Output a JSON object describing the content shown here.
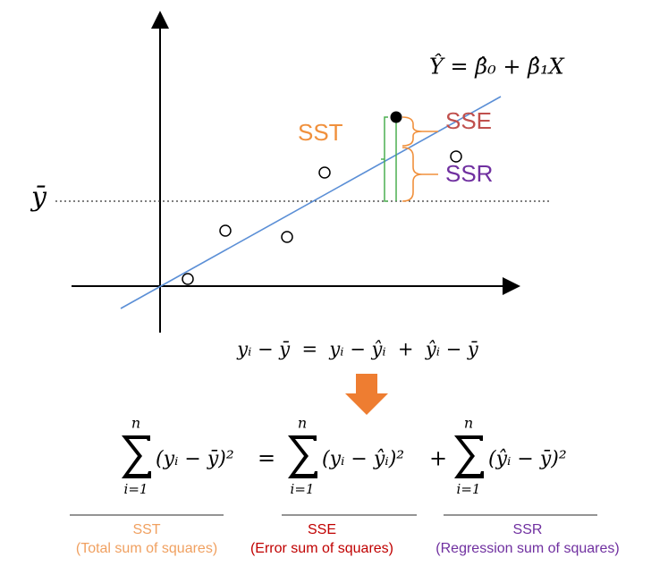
{
  "diagram": {
    "line_label": "Ŷ = β̂₀ + β̂₁X",
    "ybar_label": "ȳ",
    "sst_label": "SST",
    "sse_label": "SSE",
    "ssr_label": "SSR",
    "decomposition": "yᵢ − ȳ  =  yᵢ − ŷᵢ  +  ŷᵢ − ȳ",
    "sums": [
      {
        "upper": "n",
        "lower": "i=1",
        "body": "(yᵢ − ȳ)²"
      },
      {
        "upper": "n",
        "lower": "i=1",
        "body": "(yᵢ − ŷᵢ)²"
      },
      {
        "upper": "n",
        "lower": "i=1",
        "body": "(ŷᵢ − ȳ)²"
      }
    ],
    "operators": [
      "=",
      "+"
    ],
    "legend": [
      {
        "abbr": "SST",
        "full": "(Total sum of squares)"
      },
      {
        "abbr": "SSE",
        "full": "(Error sum of squares)"
      },
      {
        "abbr": "SSR",
        "full": "(Regression sum of squares)"
      }
    ]
  }
}
